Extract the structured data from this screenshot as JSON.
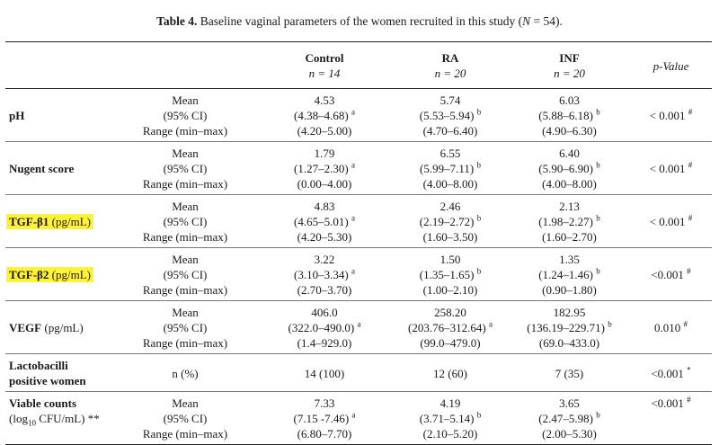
{
  "caption": {
    "label": "Table 4.",
    "text": "Baseline vaginal parameters of the women recruited in this study (",
    "n_label": "N",
    "n_value": " = 54)."
  },
  "headers": [
    {
      "title": "Control",
      "n": "n = 14"
    },
    {
      "title": "RA",
      "n": "n = 20"
    },
    {
      "title": "INF",
      "n": "n = 20"
    }
  ],
  "pvalue_header": "p-Value",
  "rows": [
    {
      "param": "pH",
      "unit": "",
      "highlight": false,
      "stats": [
        "Mean",
        "(95% CI)",
        "Range (min–max)"
      ],
      "control": [
        "4.53",
        "(4.38–4.68)",
        "a",
        "(4.20–5.00)"
      ],
      "ra": [
        "5.74",
        "(5.53–5.94)",
        "b",
        "(4.70–6.40)"
      ],
      "inf": [
        "6.03",
        "(5.88–6.18)",
        "b",
        "(4.90–6.30)"
      ],
      "p": "< 0.001",
      "p_mark": "#"
    },
    {
      "param": "Nugent score",
      "unit": "",
      "highlight": false,
      "stats": [
        "Mean",
        "(95% CI)",
        "Range (min–max)"
      ],
      "control": [
        "1.79",
        "(1.27–2.30)",
        "a",
        "(0.00–4.00)"
      ],
      "ra": [
        "6.55",
        "(5.99–7.11)",
        "b",
        "(4.00–8.00)"
      ],
      "inf": [
        "6.40",
        "(5.90–6.90)",
        "b",
        "(4.00–8.00)"
      ],
      "p": "< 0.001",
      "p_mark": "#"
    },
    {
      "param": "TGF-β1",
      "unit": " (pg/mL)",
      "highlight": true,
      "stats": [
        "Mean",
        "(95% CI)",
        "Range (min–max)"
      ],
      "control": [
        "4.83",
        "(4.65–5.01)",
        "a",
        "(4.20–5.30)"
      ],
      "ra": [
        "2.46",
        "(2.19–2.72)",
        "b",
        "(1.60–3.50)"
      ],
      "inf": [
        "2.13",
        "(1.98–2.27)",
        "b",
        "(1.60–2.70)"
      ],
      "p": "< 0.001",
      "p_mark": "#"
    },
    {
      "param": "TGF-β2",
      "unit": " (pg/mL)",
      "highlight": true,
      "stats": [
        "Mean",
        "(95% CI)",
        "Range (min–max)"
      ],
      "control": [
        "3.22",
        "(3.10–3.34)",
        "a",
        "(2.70–3.70)"
      ],
      "ra": [
        "1.50",
        "(1.35–1.65)",
        "b",
        "(1.00–2.10)"
      ],
      "inf": [
        "1.35",
        "(1.24–1.46)",
        "b",
        "(0.90–1.80)"
      ],
      "p": "<0.001",
      "p_mark": "#"
    },
    {
      "param": "VEGF",
      "unit": " (pg/mL)",
      "highlight": false,
      "stats": [
        "Mean",
        "(95% CI)",
        "Range (min–max)"
      ],
      "control": [
        "406.0",
        "(322.0–490.0)",
        "a",
        "(1.4–929.0)"
      ],
      "ra": [
        "258.20",
        "(203.76–312.64)",
        "a",
        "(99.0–479.0)"
      ],
      "inf": [
        "182.95",
        "(136.19–229.71)",
        "b",
        "(69.0–433.0)"
      ],
      "p": "0.010",
      "p_mark": "#"
    }
  ],
  "lacto": {
    "param_line1": "Lactobacilli",
    "param_line2": "positive women",
    "stat": "n (%)",
    "control": "14 (100)",
    "ra": "12 (60)",
    "inf": "7 (35)",
    "p": "<0.001",
    "p_mark": "*"
  },
  "viable": {
    "param": "Viable counts",
    "unit_pre": "(log",
    "unit_sub": "10",
    "unit_post": " CFU/mL) **",
    "stats": [
      "Mean",
      "(95% CI)",
      "Range (min–max)"
    ],
    "control": [
      "7.33",
      "(7.15 -7.46)",
      "a",
      "(6.80–7.70)"
    ],
    "ra": [
      "4.19",
      "(3.71–5.14)",
      "b",
      "(2.10–5.20)"
    ],
    "inf": [
      "3.65",
      "(2.47–5.98)",
      "b",
      "(2.00–5.30)"
    ],
    "p": "<0.001",
    "p_mark": "#"
  },
  "colors": {
    "highlight": "#fff238",
    "rule": "#222222"
  }
}
